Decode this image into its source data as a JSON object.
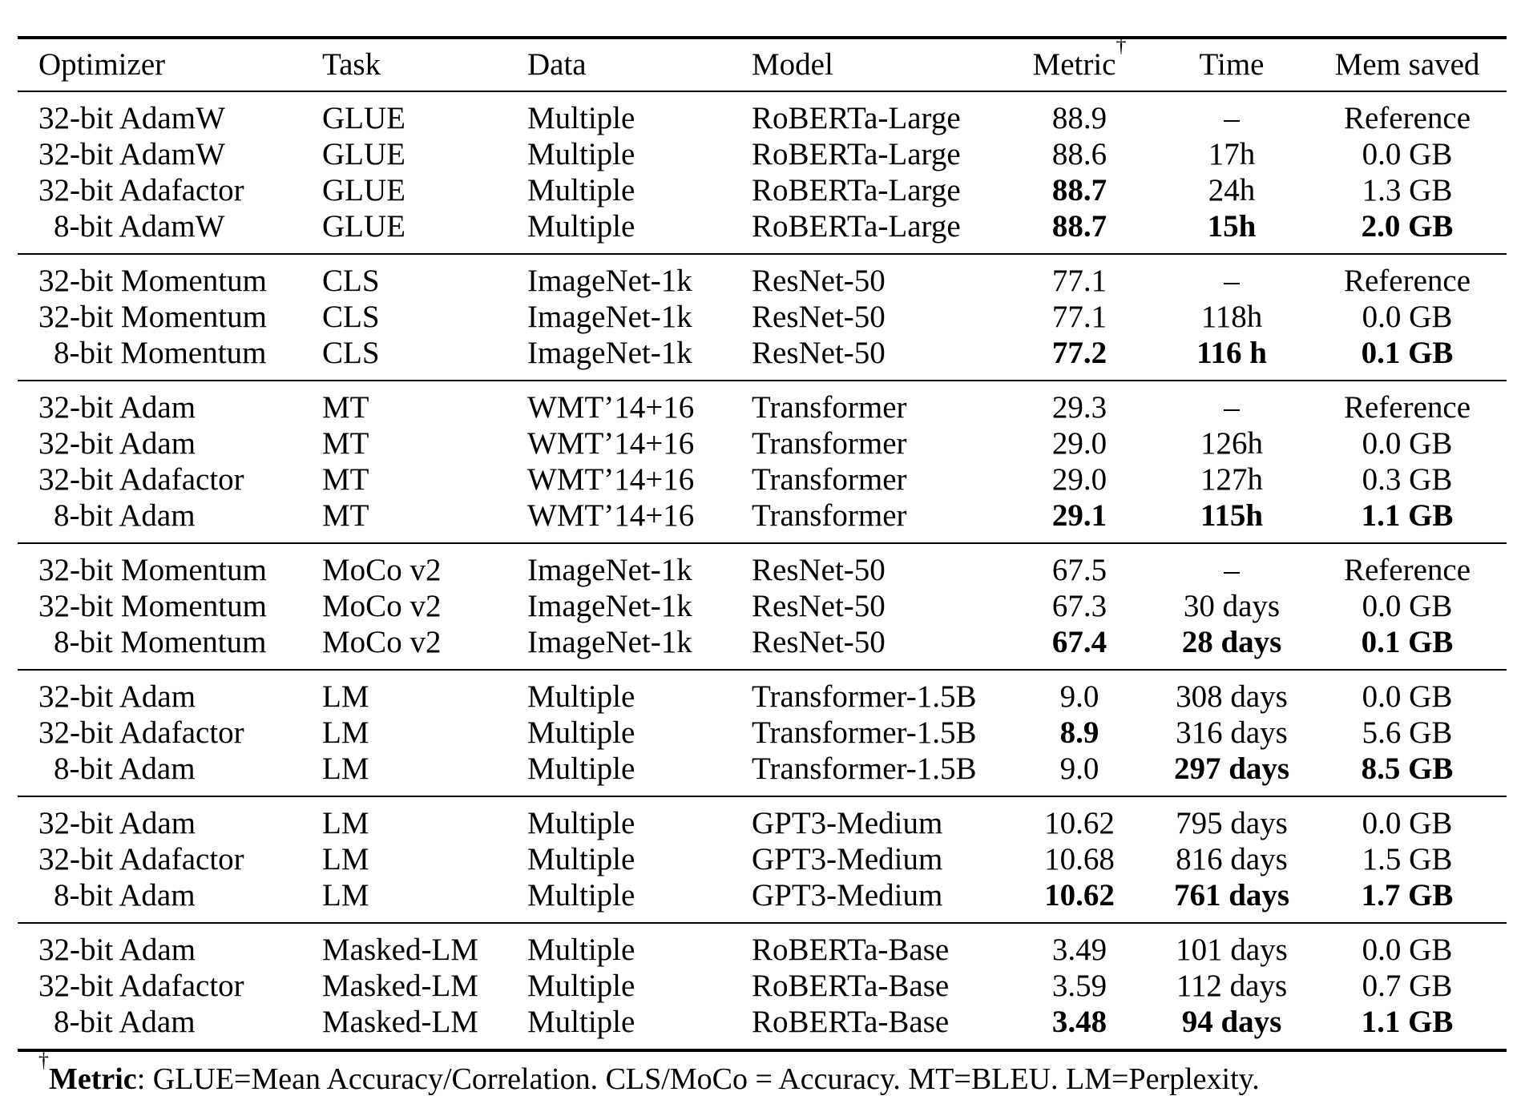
{
  "table": {
    "columns": [
      {
        "label": "Optimizer"
      },
      {
        "label": "Task"
      },
      {
        "label": "Data"
      },
      {
        "label": "Model"
      },
      {
        "label": "Metric",
        "marker": "†"
      },
      {
        "label": "Time"
      },
      {
        "label": "Mem saved"
      }
    ],
    "groups": [
      {
        "rows": [
          {
            "optimizer": "32-bit AdamW",
            "task": "GLUE",
            "data": "Multiple",
            "model": "RoBERTa-Large",
            "metric": "88.9",
            "time": "–",
            "mem_saved": "Reference",
            "bold": []
          },
          {
            "optimizer": "32-bit AdamW",
            "task": "GLUE",
            "data": "Multiple",
            "model": "RoBERTa-Large",
            "metric": "88.6",
            "time": "17h",
            "mem_saved": "0.0 GB",
            "bold": []
          },
          {
            "optimizer": "32-bit Adafactor",
            "task": "GLUE",
            "data": "Multiple",
            "model": "RoBERTa-Large",
            "metric": "88.7",
            "time": "24h",
            "mem_saved": "1.3 GB",
            "bold": [
              "metric"
            ]
          },
          {
            "optimizer": "8-bit AdamW",
            "task": "GLUE",
            "data": "Multiple",
            "model": "RoBERTa-Large",
            "metric": "88.7",
            "time": "15h",
            "mem_saved": "2.0 GB",
            "bold": [
              "metric",
              "time",
              "mem_saved"
            ]
          }
        ]
      },
      {
        "rows": [
          {
            "optimizer": "32-bit Momentum",
            "task": "CLS",
            "data": "ImageNet-1k",
            "model": "ResNet-50",
            "metric": "77.1",
            "time": "–",
            "mem_saved": "Reference",
            "bold": []
          },
          {
            "optimizer": "32-bit Momentum",
            "task": "CLS",
            "data": "ImageNet-1k",
            "model": "ResNet-50",
            "metric": "77.1",
            "time": "118h",
            "mem_saved": "0.0 GB",
            "bold": []
          },
          {
            "optimizer": "8-bit Momentum",
            "task": "CLS",
            "data": "ImageNet-1k",
            "model": "ResNet-50",
            "metric": "77.2",
            "time": "116 h",
            "mem_saved": "0.1 GB",
            "bold": [
              "metric",
              "time",
              "mem_saved"
            ]
          }
        ]
      },
      {
        "rows": [
          {
            "optimizer": "32-bit Adam",
            "task": "MT",
            "data": "WMT’14+16",
            "model": "Transformer",
            "metric": "29.3",
            "time": "–",
            "mem_saved": "Reference",
            "bold": []
          },
          {
            "optimizer": "32-bit Adam",
            "task": "MT",
            "data": "WMT’14+16",
            "model": "Transformer",
            "metric": "29.0",
            "time": "126h",
            "mem_saved": "0.0 GB",
            "bold": []
          },
          {
            "optimizer": "32-bit Adafactor",
            "task": "MT",
            "data": "WMT’14+16",
            "model": "Transformer",
            "metric": "29.0",
            "time": "127h",
            "mem_saved": "0.3 GB",
            "bold": []
          },
          {
            "optimizer": "8-bit Adam",
            "task": "MT",
            "data": "WMT’14+16",
            "model": "Transformer",
            "metric": "29.1",
            "time": "115h",
            "mem_saved": "1.1 GB",
            "bold": [
              "metric",
              "time",
              "mem_saved"
            ]
          }
        ]
      },
      {
        "rows": [
          {
            "optimizer": "32-bit Momentum",
            "task": "MoCo v2",
            "data": "ImageNet-1k",
            "model": "ResNet-50",
            "metric": "67.5",
            "time": "–",
            "mem_saved": "Reference",
            "bold": []
          },
          {
            "optimizer": "32-bit Momentum",
            "task": "MoCo v2",
            "data": "ImageNet-1k",
            "model": "ResNet-50",
            "metric": "67.3",
            "time": "30 days",
            "mem_saved": "0.0 GB",
            "bold": []
          },
          {
            "optimizer": "8-bit Momentum",
            "task": "MoCo v2",
            "data": "ImageNet-1k",
            "model": "ResNet-50",
            "metric": "67.4",
            "time": "28 days",
            "mem_saved": "0.1 GB",
            "bold": [
              "metric",
              "time",
              "mem_saved"
            ]
          }
        ]
      },
      {
        "rows": [
          {
            "optimizer": "32-bit Adam",
            "task": "LM",
            "data": "Multiple",
            "model": "Transformer-1.5B",
            "metric": "9.0",
            "time": "308 days",
            "mem_saved": "0.0 GB",
            "bold": []
          },
          {
            "optimizer": "32-bit Adafactor",
            "task": "LM",
            "data": "Multiple",
            "model": "Transformer-1.5B",
            "metric": "8.9",
            "time": "316 days",
            "mem_saved": "5.6 GB",
            "bold": [
              "metric"
            ]
          },
          {
            "optimizer": "8-bit Adam",
            "task": "LM",
            "data": "Multiple",
            "model": "Transformer-1.5B",
            "metric": "9.0",
            "time": "297 days",
            "mem_saved": "8.5 GB",
            "bold": [
              "time",
              "mem_saved"
            ]
          }
        ]
      },
      {
        "rows": [
          {
            "optimizer": "32-bit Adam",
            "task": "LM",
            "data": "Multiple",
            "model": "GPT3-Medium",
            "metric": "10.62",
            "time": "795 days",
            "mem_saved": "0.0 GB",
            "bold": []
          },
          {
            "optimizer": "32-bit Adafactor",
            "task": "LM",
            "data": "Multiple",
            "model": "GPT3-Medium",
            "metric": "10.68",
            "time": "816 days",
            "mem_saved": "1.5 GB",
            "bold": []
          },
          {
            "optimizer": "8-bit Adam",
            "task": "LM",
            "data": "Multiple",
            "model": "GPT3-Medium",
            "metric": "10.62",
            "time": "761 days",
            "mem_saved": "1.7 GB",
            "bold": [
              "metric",
              "time",
              "mem_saved"
            ]
          }
        ]
      },
      {
        "rows": [
          {
            "optimizer": "32-bit Adam",
            "task": "Masked-LM",
            "data": "Multiple",
            "model": "RoBERTa-Base",
            "metric": "3.49",
            "time": "101 days",
            "mem_saved": "0.0 GB",
            "bold": []
          },
          {
            "optimizer": "32-bit Adafactor",
            "task": "Masked-LM",
            "data": "Multiple",
            "model": "RoBERTa-Base",
            "metric": "3.59",
            "time": "112 days",
            "mem_saved": "0.7 GB",
            "bold": []
          },
          {
            "optimizer": "8-bit Adam",
            "task": "Masked-LM",
            "data": "Multiple",
            "model": "RoBERTa-Base",
            "metric": "3.48",
            "time": "94 days",
            "mem_saved": "1.1 GB",
            "bold": [
              "metric",
              "time",
              "mem_saved"
            ]
          }
        ]
      }
    ]
  },
  "footnote": {
    "marker": "†",
    "term": "Metric",
    "text": ": GLUE=Mean Accuracy/Correlation. CLS/MoCo = Accuracy. MT=BLEU. LM=Perplexity."
  }
}
